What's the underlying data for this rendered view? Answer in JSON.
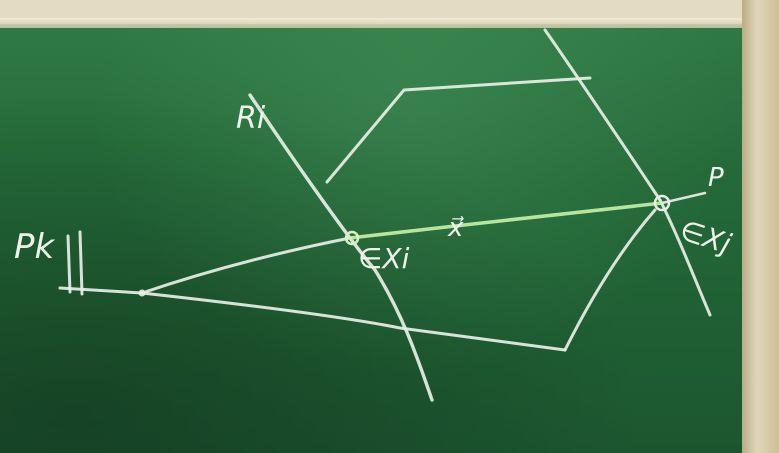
{
  "labels": {
    "Pk": "Pk",
    "Ri": "Ri",
    "P": "P",
    "x_vec": "x⃗",
    "in_Xi": "∈Xi",
    "in_Xj": "∈Xj"
  },
  "colors": {
    "board": "#246a39",
    "chalk": "#e9efe6",
    "frame": "#d5cba9"
  }
}
